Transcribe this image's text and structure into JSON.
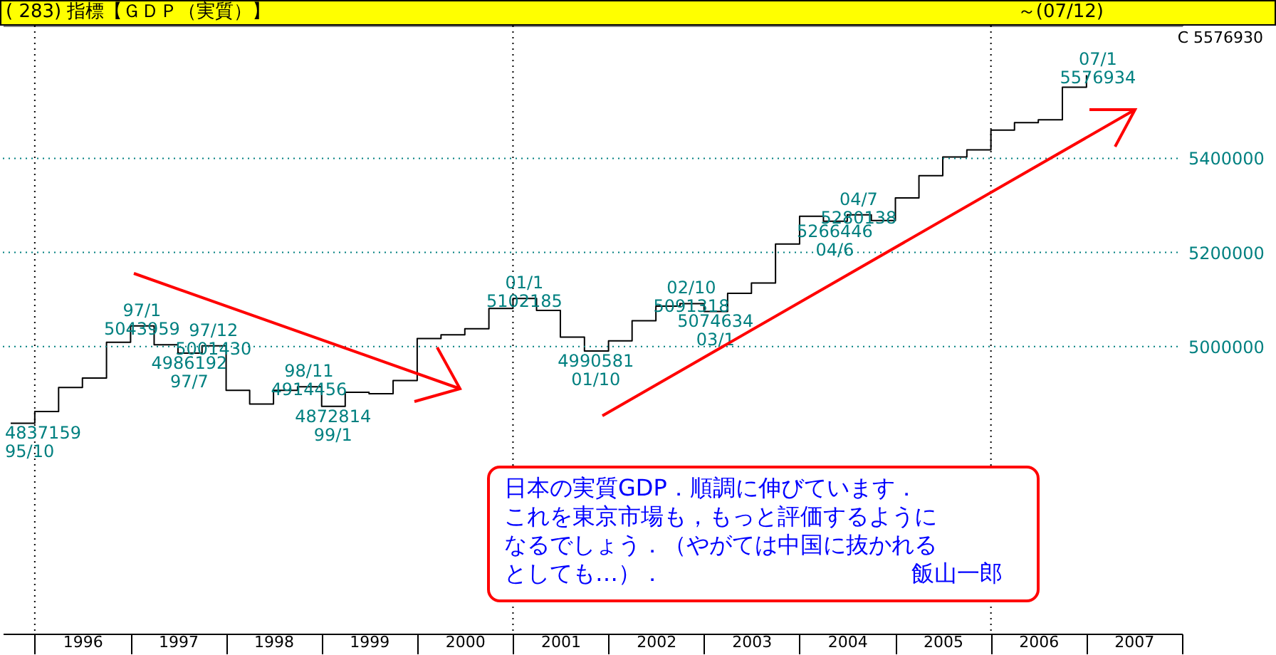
{
  "chart_data": {
    "type": "step",
    "title": "( 283) 指標【ＧＤＰ（実質）】",
    "subtitle": "～(07/12)",
    "x": [
      "1995-10",
      "1996-01",
      "1996-04",
      "1996-07",
      "1996-10",
      "1997-01",
      "1997-04",
      "1997-07",
      "1997-10",
      "1998-01",
      "1998-04",
      "1998-07",
      "1998-10",
      "1999-01",
      "1999-04",
      "1999-07",
      "1999-10",
      "2000-01",
      "2000-04",
      "2000-07",
      "2000-10",
      "2001-01",
      "2001-04",
      "2001-07",
      "2001-10",
      "2002-01",
      "2002-04",
      "2002-07",
      "2002-10",
      "2003-01",
      "2003-04",
      "2003-07",
      "2003-10",
      "2004-01",
      "2004-04",
      "2004-07",
      "2004-10",
      "2005-01",
      "2005-04",
      "2005-07",
      "2005-10",
      "2006-01",
      "2006-04",
      "2006-07",
      "2006-10",
      "2007-01"
    ],
    "series": [
      {
        "color": "#000000",
        "values": [
          4837159,
          4862000,
          4913000,
          4933000,
          5009000,
          5043959,
          5004000,
          4986192,
          5001430,
          4907000,
          4878000,
          4907000,
          4914456,
          4872814,
          4903000,
          4900000,
          4928000,
          5017000,
          5025000,
          5038000,
          5081000,
          5102185,
          5077000,
          5020000,
          4990581,
          5012000,
          5055000,
          5086000,
          5091318,
          5074634,
          5113000,
          5135000,
          5218000,
          5277000,
          5266446,
          5280138,
          5268000,
          5316000,
          5363000,
          5403000,
          5418000,
          5460000,
          5476000,
          5482000,
          5551000,
          5576934
        ]
      }
    ],
    "xlim": [
      "1995-09",
      "2008-01"
    ],
    "xticks": [
      {
        "value": "1996-01",
        "label": null
      },
      {
        "value": "1996-07",
        "label": "1996"
      },
      {
        "value": "1997-01",
        "label": null
      },
      {
        "value": "1997-07",
        "label": "1997"
      },
      {
        "value": "1998-01",
        "label": null
      },
      {
        "value": "1998-07",
        "label": "1998"
      },
      {
        "value": "1999-01",
        "label": null
      },
      {
        "value": "1999-07",
        "label": "1999"
      },
      {
        "value": "2000-01",
        "label": null
      },
      {
        "value": "2000-07",
        "label": "2000"
      },
      {
        "value": "2001-01",
        "label": null
      },
      {
        "value": "2001-07",
        "label": "2001"
      },
      {
        "value": "2002-01",
        "label": null
      },
      {
        "value": "2002-07",
        "label": "2002"
      },
      {
        "value": "2003-01",
        "label": null
      },
      {
        "value": "2003-07",
        "label": "2003"
      },
      {
        "value": "2004-01",
        "label": null
      },
      {
        "value": "2004-07",
        "label": "2004"
      },
      {
        "value": "2005-01",
        "label": null
      },
      {
        "value": "2005-07",
        "label": "2005"
      },
      {
        "value": "2006-01",
        "label": null
      },
      {
        "value": "2006-07",
        "label": "2006"
      },
      {
        "value": "2007-01",
        "label": null
      },
      {
        "value": "2007-07",
        "label": "2007"
      },
      {
        "value": "2008-01",
        "label": null
      }
    ],
    "ylim": [
      4390000,
      5682000
    ],
    "yticks": [
      5000000,
      5200000,
      5400000
    ],
    "grid": "y",
    "ref_lines": [
      {
        "axis": "x",
        "value": "1996-01",
        "color": "#000000",
        "line_style": "dotted"
      },
      {
        "axis": "x",
        "value": "2001-01",
        "color": "#000000",
        "line_style": "dotted"
      },
      {
        "axis": "x",
        "value": "2006-01",
        "color": "#000000",
        "line_style": "dotted"
      }
    ],
    "annotations": [
      "C 5576930",
      "日本の実質GDP．順調に伸びています．",
      "これを東京市場も，もっと評価するように",
      "なるでしょう．（やがては中国に抜かれる",
      "としても…）．",
      "飯山一郎",
      {
        "text": "4837159\n95/10",
        "x": "1995-10",
        "y": 4837159
      },
      {
        "text": "97/1\n5043959",
        "x": "1997-01",
        "y": 5043959
      },
      {
        "text": "4986192\n97/7",
        "x": "1997-07",
        "y": 4986192
      },
      {
        "text": "97/12\n5001430",
        "x": "1997-10",
        "y": 5001430
      },
      {
        "text": "98/11\n4914456",
        "x": "1998-10",
        "y": 4914456
      },
      {
        "text": "4872814\n99/1",
        "x": "1999-01",
        "y": 4872814
      },
      {
        "text": "01/1\n5102185",
        "x": "2001-01",
        "y": 5102185
      },
      {
        "text": "4990581\n01/10",
        "x": "2001-10",
        "y": 4990581
      },
      {
        "text": "02/10\n5091318",
        "x": "2002-10",
        "y": 5091318
      },
      {
        "text": "5074634\n03/1",
        "x": "2003-01",
        "y": 5074634
      },
      {
        "text": "04/7\n5280138",
        "x": "2004-07",
        "y": 5280138
      },
      {
        "text": "5266446\n04/6",
        "x": "2004-04",
        "y": 5266446
      },
      {
        "text": "07/1\n5576934",
        "x": "2007-01",
        "y": 5576934
      }
    ]
  }
}
